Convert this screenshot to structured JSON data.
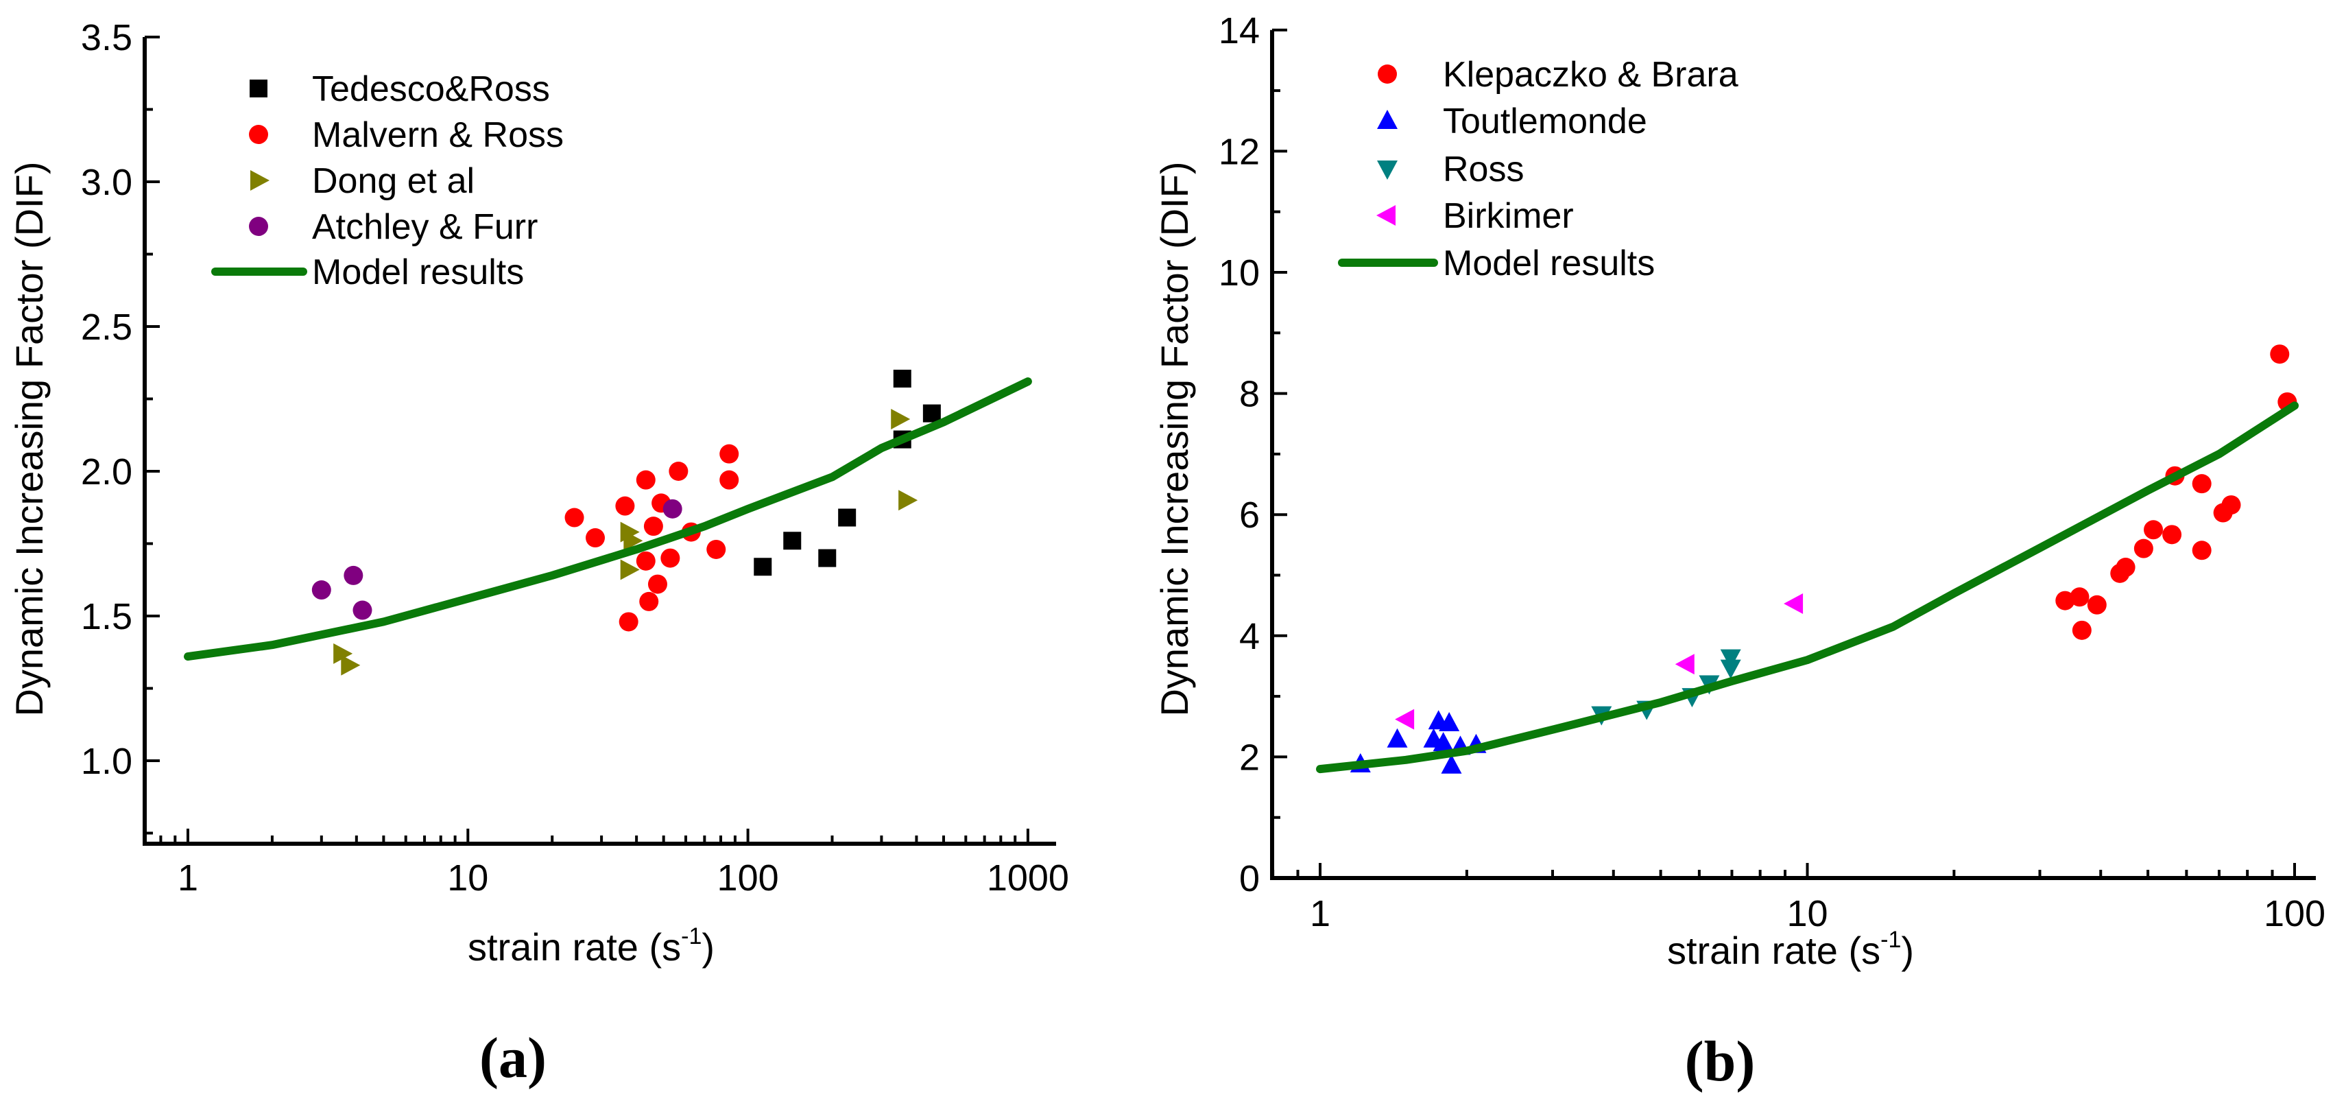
{
  "chart_data": [
    {
      "type": "scatter",
      "panel_label": "(a)",
      "xlabel": "strain rate (s",
      "xlabel_sup": "-1",
      "xlabel_close": ")",
      "ylabel": "Dynamic Increasing Factor (DIF)",
      "xscale": "log",
      "xlim": [
        0.7,
        1260
      ],
      "ylim": [
        0.7,
        3.5
      ],
      "xticks": [
        {
          "v": 1,
          "label": "1"
        },
        {
          "v": 10,
          "label": "10"
        },
        {
          "v": 100,
          "label": "100"
        },
        {
          "v": 1000,
          "label": "1000"
        }
      ],
      "yticks": [
        {
          "v": 1.0,
          "label": "1.0"
        },
        {
          "v": 1.5,
          "label": "1.5"
        },
        {
          "v": 2.0,
          "label": "2.0"
        },
        {
          "v": 2.5,
          "label": "2.5"
        },
        {
          "v": 3.0,
          "label": "3.0"
        },
        {
          "v": 3.5,
          "label": "3.5"
        }
      ],
      "grid": false,
      "legend_position": "top-left",
      "series": [
        {
          "name": "Tedesco&Ross",
          "marker": "square",
          "color": "#000000",
          "points": [
            [
              356,
              2.32
            ],
            [
              356,
              2.11
            ],
            [
              454,
              2.2
            ],
            [
              113,
              1.67
            ],
            [
              144,
              1.76
            ],
            [
              192,
              1.7
            ],
            [
              226,
              1.84
            ]
          ]
        },
        {
          "name": "Malvern & Ross",
          "marker": "circle",
          "color": "#ff0000",
          "points": [
            [
              24,
              1.84
            ],
            [
              28.5,
              1.77
            ],
            [
              36.4,
              1.88
            ],
            [
              43.2,
              1.97
            ],
            [
              56.5,
              2.0
            ],
            [
              49,
              1.89
            ],
            [
              46,
              1.81
            ],
            [
              62.7,
              1.79
            ],
            [
              43.2,
              1.69
            ],
            [
              52.8,
              1.7
            ],
            [
              47.6,
              1.61
            ],
            [
              44.3,
              1.55
            ],
            [
              37.5,
              1.48
            ],
            [
              77,
              1.73
            ],
            [
              85.7,
              2.06
            ],
            [
              85.7,
              1.97
            ]
          ]
        },
        {
          "name": "Dong et al",
          "marker": "triangle-right",
          "color": "#808000",
          "points": [
            [
              3.54,
              1.37
            ],
            [
              3.77,
              1.33
            ],
            [
              37.5,
              1.79
            ],
            [
              38.5,
              1.76
            ],
            [
              37.5,
              1.66
            ],
            [
              347,
              2.18
            ],
            [
              369,
              1.9
            ]
          ]
        },
        {
          "name": "Atchley & Furr",
          "marker": "circle",
          "color": "#800080",
          "points": [
            [
              3.0,
              1.59
            ],
            [
              3.9,
              1.64
            ],
            [
              4.2,
              1.52
            ],
            [
              53.8,
              1.87
            ]
          ]
        },
        {
          "name": "Model results",
          "marker": "line",
          "color": "#0a7a0a",
          "points": [
            [
              1,
              1.36
            ],
            [
              2,
              1.4
            ],
            [
              5,
              1.48
            ],
            [
              10,
              1.56
            ],
            [
              20,
              1.64
            ],
            [
              40,
              1.73
            ],
            [
              70,
              1.81
            ],
            [
              100,
              1.87
            ],
            [
              200,
              1.98
            ],
            [
              300,
              2.08
            ],
            [
              500,
              2.17
            ],
            [
              1000,
              2.31
            ]
          ]
        }
      ]
    },
    {
      "type": "scatter",
      "panel_label": "(b)",
      "xlabel": "strain rate (s",
      "xlabel_sup": "-1",
      "xlabel_close": ")",
      "ylabel": "Dynamic Increasing Factor (DIF)",
      "xscale": "log",
      "xlim": [
        0.8,
        110
      ],
      "ylim": [
        0,
        14
      ],
      "xticks": [
        {
          "v": 1,
          "label": "1"
        },
        {
          "v": 10,
          "label": "10"
        },
        {
          "v": 100,
          "label": "100"
        }
      ],
      "yticks": [
        {
          "v": 0,
          "label": "0"
        },
        {
          "v": 2,
          "label": "2"
        },
        {
          "v": 4,
          "label": "4"
        },
        {
          "v": 6,
          "label": "6"
        },
        {
          "v": 8,
          "label": "8"
        },
        {
          "v": 10,
          "label": "10"
        },
        {
          "v": 12,
          "label": "12"
        },
        {
          "v": 14,
          "label": "14"
        }
      ],
      "grid": false,
      "legend_position": "top-left",
      "series": [
        {
          "name": "Klepaczko & Brara",
          "marker": "circle",
          "color": "#ff0000",
          "points": [
            [
              33.8,
              4.58
            ],
            [
              36.2,
              4.64
            ],
            [
              36.6,
              4.09
            ],
            [
              39.3,
              4.51
            ],
            [
              43.8,
              5.03
            ],
            [
              45,
              5.13
            ],
            [
              49,
              5.44
            ],
            [
              51.3,
              5.75
            ],
            [
              56,
              5.67
            ],
            [
              56.8,
              6.64
            ],
            [
              64.5,
              6.51
            ],
            [
              64.5,
              5.41
            ],
            [
              71.3,
              6.03
            ],
            [
              74.1,
              6.16
            ],
            [
              93.2,
              8.65
            ],
            [
              96.6,
              7.86
            ]
          ]
        },
        {
          "name": "Toutlemonde",
          "marker": "triangle-up",
          "color": "#0000ff",
          "points": [
            [
              1.21,
              1.88
            ],
            [
              1.44,
              2.29
            ],
            [
              1.75,
              2.59
            ],
            [
              1.84,
              2.56
            ],
            [
              1.71,
              2.29
            ],
            [
              1.79,
              2.23
            ],
            [
              1.94,
              2.17
            ],
            [
              1.86,
              1.86
            ],
            [
              2.09,
              2.2
            ]
          ]
        },
        {
          "name": "Ross",
          "marker": "triangle-down",
          "color": "#008080",
          "points": [
            [
              3.78,
              2.7
            ],
            [
              4.68,
              2.79
            ],
            [
              5.8,
              3.0
            ],
            [
              6.29,
              3.21
            ],
            [
              6.96,
              3.64
            ],
            [
              6.96,
              3.47
            ]
          ]
        },
        {
          "name": "Birkimer",
          "marker": "triangle-left",
          "color": "#ff00ff",
          "points": [
            [
              1.5,
              2.62
            ],
            [
              5.64,
              3.53
            ],
            [
              9.42,
              4.53
            ]
          ]
        },
        {
          "name": "Model results",
          "marker": "line",
          "color": "#0a7a0a",
          "points": [
            [
              1,
              1.8
            ],
            [
              1.5,
              1.95
            ],
            [
              2,
              2.1
            ],
            [
              3,
              2.45
            ],
            [
              5,
              2.9
            ],
            [
              7,
              3.25
            ],
            [
              10,
              3.6
            ],
            [
              15,
              4.15
            ],
            [
              20,
              4.7
            ],
            [
              30,
              5.45
            ],
            [
              50,
              6.4
            ],
            [
              70,
              7.0
            ],
            [
              100,
              7.8
            ]
          ]
        }
      ]
    }
  ]
}
